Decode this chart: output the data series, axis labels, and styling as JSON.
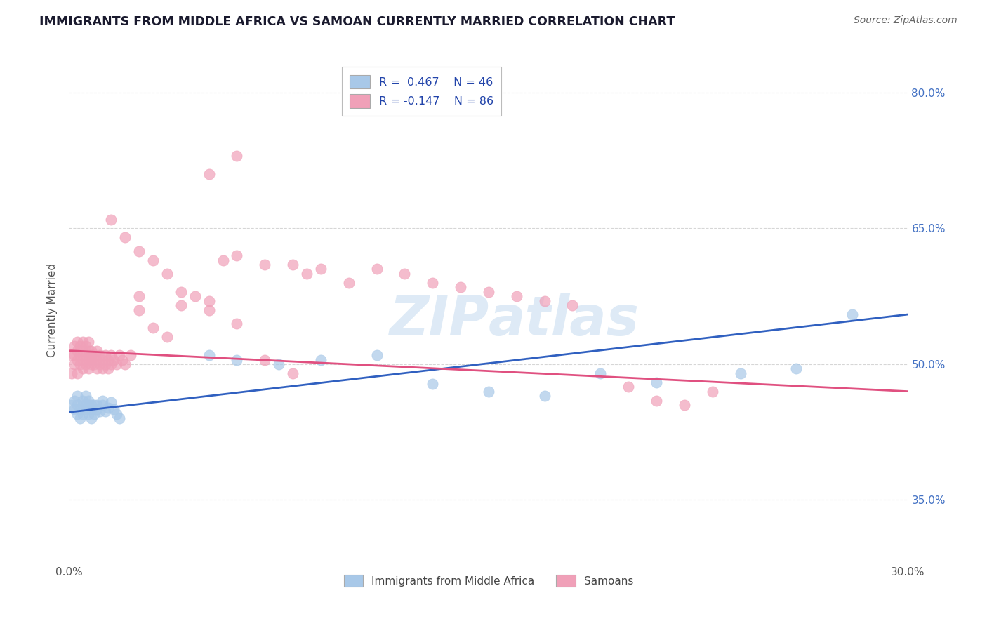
{
  "title": "IMMIGRANTS FROM MIDDLE AFRICA VS SAMOAN CURRENTLY MARRIED CORRELATION CHART",
  "source": "Source: ZipAtlas.com",
  "ylabel": "Currently Married",
  "legend_label1": "Immigrants from Middle Africa",
  "legend_label2": "Samoans",
  "color_blue": "#A8C8E8",
  "color_pink": "#F0A0B8",
  "color_line_blue": "#3060C0",
  "color_line_pink": "#E05080",
  "watermark": "ZIPAtlas",
  "xlim": [
    0.0,
    0.3
  ],
  "ylim": [
    0.28,
    0.84
  ],
  "y_ticks": [
    0.35,
    0.5,
    0.65,
    0.8
  ],
  "y_tick_labels": [
    "35.0%",
    "50.0%",
    "65.0%",
    "80.0%"
  ],
  "blue_x": [
    0.001,
    0.002,
    0.002,
    0.003,
    0.003,
    0.003,
    0.004,
    0.004,
    0.005,
    0.005,
    0.005,
    0.006,
    0.006,
    0.006,
    0.007,
    0.007,
    0.007,
    0.008,
    0.008,
    0.008,
    0.009,
    0.009,
    0.01,
    0.01,
    0.011,
    0.012,
    0.012,
    0.013,
    0.014,
    0.015,
    0.016,
    0.017,
    0.018,
    0.05,
    0.06,
    0.075,
    0.09,
    0.11,
    0.13,
    0.15,
    0.17,
    0.19,
    0.21,
    0.24,
    0.26,
    0.28
  ],
  "blue_y": [
    0.455,
    0.45,
    0.46,
    0.445,
    0.455,
    0.465,
    0.44,
    0.45,
    0.455,
    0.445,
    0.46,
    0.45,
    0.455,
    0.465,
    0.445,
    0.455,
    0.46,
    0.44,
    0.45,
    0.455,
    0.445,
    0.455,
    0.45,
    0.455,
    0.448,
    0.455,
    0.46,
    0.448,
    0.452,
    0.458,
    0.45,
    0.445,
    0.44,
    0.51,
    0.505,
    0.5,
    0.505,
    0.51,
    0.478,
    0.47,
    0.465,
    0.49,
    0.48,
    0.49,
    0.495,
    0.555
  ],
  "pink_x": [
    0.001,
    0.001,
    0.002,
    0.002,
    0.002,
    0.003,
    0.003,
    0.003,
    0.003,
    0.004,
    0.004,
    0.004,
    0.005,
    0.005,
    0.005,
    0.005,
    0.006,
    0.006,
    0.006,
    0.007,
    0.007,
    0.007,
    0.007,
    0.008,
    0.008,
    0.008,
    0.008,
    0.009,
    0.009,
    0.01,
    0.01,
    0.01,
    0.011,
    0.011,
    0.012,
    0.012,
    0.013,
    0.013,
    0.014,
    0.014,
    0.015,
    0.015,
    0.016,
    0.017,
    0.018,
    0.019,
    0.02,
    0.022,
    0.025,
    0.025,
    0.03,
    0.035,
    0.04,
    0.045,
    0.05,
    0.055,
    0.06,
    0.07,
    0.08,
    0.085,
    0.09,
    0.1,
    0.11,
    0.12,
    0.13,
    0.14,
    0.15,
    0.16,
    0.17,
    0.18,
    0.015,
    0.02,
    0.025,
    0.03,
    0.035,
    0.04,
    0.05,
    0.06,
    0.07,
    0.08,
    0.05,
    0.06,
    0.2,
    0.21,
    0.22,
    0.23
  ],
  "pink_y": [
    0.49,
    0.51,
    0.5,
    0.51,
    0.52,
    0.49,
    0.505,
    0.515,
    0.525,
    0.5,
    0.51,
    0.52,
    0.495,
    0.505,
    0.515,
    0.525,
    0.5,
    0.51,
    0.52,
    0.495,
    0.505,
    0.515,
    0.525,
    0.5,
    0.505,
    0.515,
    0.51,
    0.5,
    0.51,
    0.495,
    0.505,
    0.515,
    0.5,
    0.51,
    0.495,
    0.505,
    0.5,
    0.51,
    0.495,
    0.505,
    0.5,
    0.51,
    0.505,
    0.5,
    0.51,
    0.505,
    0.5,
    0.51,
    0.56,
    0.575,
    0.54,
    0.53,
    0.565,
    0.575,
    0.56,
    0.615,
    0.62,
    0.61,
    0.61,
    0.6,
    0.605,
    0.59,
    0.605,
    0.6,
    0.59,
    0.585,
    0.58,
    0.575,
    0.57,
    0.565,
    0.66,
    0.64,
    0.625,
    0.615,
    0.6,
    0.58,
    0.57,
    0.545,
    0.505,
    0.49,
    0.71,
    0.73,
    0.475,
    0.46,
    0.455,
    0.47
  ],
  "blue_line": [
    0.0,
    0.3,
    0.447,
    0.555
  ],
  "pink_line": [
    0.0,
    0.3,
    0.515,
    0.47
  ]
}
